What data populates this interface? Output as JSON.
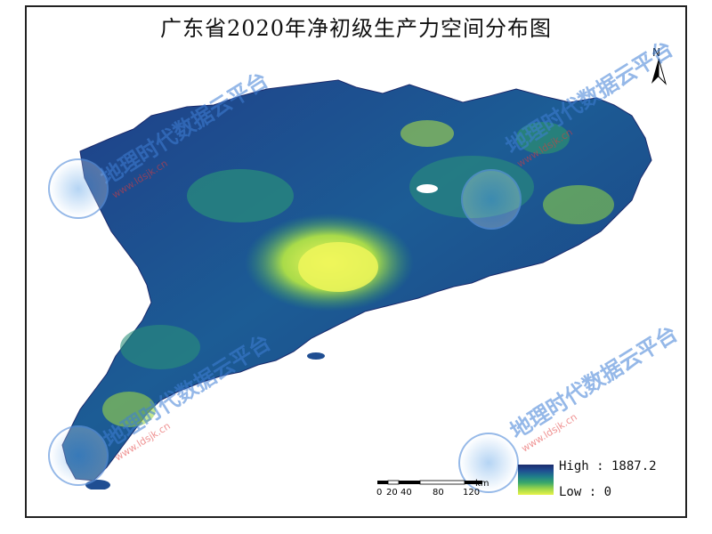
{
  "map": {
    "title": "广东省2020年净初级生产力空间分布图",
    "north_label": "N"
  },
  "legend": {
    "high_text": "High : 1887.2",
    "low_text": "Low : 0",
    "high_value": 1887.2,
    "low_value": 0,
    "colors": [
      "#1a2a6c",
      "#1f4e92",
      "#1f7f8a",
      "#3aa86a",
      "#9bd64a",
      "#e8f34a"
    ]
  },
  "scalebar": {
    "ticks": [
      "0",
      "20",
      "40",
      "80",
      "120"
    ],
    "unit": "km"
  },
  "watermarks": [
    {
      "text": "地理时代数据云平台",
      "url": "www.ldsjk.cn"
    },
    {
      "text": "地理时代数据云平台",
      "url": "www.ldsjk.cn"
    },
    {
      "text": "地理时代数据云平台",
      "url": "www.ldsjk.cn"
    },
    {
      "text": "地理时代数据云平台",
      "url": "www.ldsjk.cn"
    }
  ]
}
